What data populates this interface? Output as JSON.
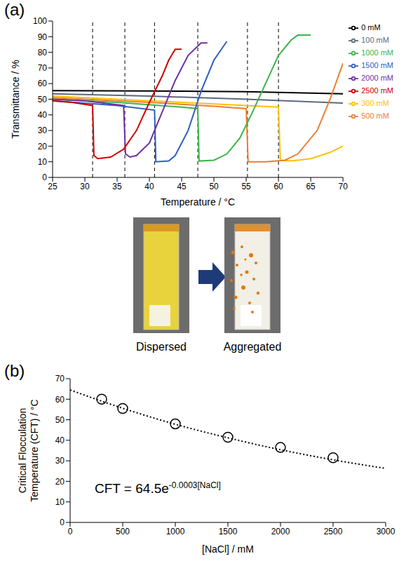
{
  "chart_data": [
    {
      "type": "line",
      "panel": "(a)",
      "x_label": "Temperature / °C",
      "y_label": "Transmittance / %",
      "xlim": [
        25,
        70
      ],
      "xticks": [
        25,
        30,
        35,
        40,
        45,
        50,
        55,
        60,
        65,
        70
      ],
      "ylim": [
        0,
        100
      ],
      "yticks": [
        0,
        10,
        20,
        30,
        40,
        50,
        60,
        70,
        80,
        90,
        100
      ],
      "legend": "right",
      "grid": false,
      "vlines": [
        31.2,
        36.2,
        40.8,
        47.5,
        55.2,
        60
      ],
      "series": [
        {
          "name": "0 mM",
          "color": "#000000",
          "x": [
            25,
            40,
            55,
            70
          ],
          "values": [
            55.5,
            55.3,
            54.8,
            53.5
          ]
        },
        {
          "name": "100 mM",
          "color": "#5a6a80",
          "x": [
            25,
            40,
            55,
            70
          ],
          "values": [
            53.5,
            52,
            50,
            47.5
          ]
        },
        {
          "name": "300 mM",
          "color": "#ffc000",
          "x": [
            25,
            40,
            55,
            60,
            60.3,
            62,
            65,
            68,
            70
          ],
          "values": [
            52,
            49,
            46,
            45,
            11,
            10.5,
            12,
            16,
            20
          ]
        },
        {
          "name": "500 mM",
          "color": "#ed7d31",
          "x": [
            25,
            40,
            50,
            55,
            55.3,
            58,
            61,
            63,
            66,
            68,
            70
          ],
          "values": [
            51,
            48,
            45.5,
            44,
            10,
            10,
            11,
            15,
            30,
            50,
            73
          ]
        },
        {
          "name": "1000 mM",
          "color": "#3cb44b",
          "x": [
            25,
            35,
            45,
            47.5,
            47.7,
            50,
            52,
            54,
            56,
            58,
            60,
            62,
            63,
            65
          ],
          "values": [
            50,
            48,
            45,
            44,
            10.5,
            11,
            15,
            25,
            42,
            60,
            78,
            88,
            91,
            91
          ]
        },
        {
          "name": "1500 mM",
          "color": "#2e5fc4",
          "x": [
            25,
            35,
            40.8,
            41,
            43,
            44,
            46,
            48,
            50,
            52
          ],
          "values": [
            49,
            46,
            43,
            10,
            10.5,
            14,
            30,
            55,
            75,
            87
          ]
        },
        {
          "name": "2000 mM",
          "color": "#7030a0",
          "x": [
            25,
            30,
            36,
            36.3,
            37,
            38,
            40,
            42,
            44,
            46,
            48,
            49
          ],
          "values": [
            50,
            49,
            46,
            15,
            13,
            14,
            22,
            42,
            62,
            78,
            86,
            86
          ]
        },
        {
          "name": "2500 mM",
          "color": "#d00000",
          "x": [
            25,
            28,
            31.2,
            31.4,
            32,
            34,
            36,
            38,
            40,
            42,
            43,
            44,
            45
          ],
          "values": [
            49,
            48,
            46,
            14,
            12,
            13,
            18,
            30,
            48,
            65,
            75,
            82,
            82
          ]
        }
      ]
    },
    {
      "type": "scatter",
      "panel": "(b)",
      "x_label": "[NaCl] / mM",
      "y_label": "Critical Flocculation Temperature (CFT) / °C",
      "xlim": [
        0,
        3000
      ],
      "xticks": [
        0,
        500,
        1000,
        1500,
        2000,
        2500,
        3000
      ],
      "ylim": [
        0,
        70
      ],
      "yticks": [
        0,
        10,
        20,
        30,
        40,
        50,
        60,
        70
      ],
      "grid": false,
      "marker": "circle",
      "color": "#000000",
      "x": [
        300,
        500,
        1000,
        1500,
        2000,
        2500
      ],
      "values": [
        60,
        55.5,
        48,
        41.5,
        36.5,
        31.5
      ],
      "fit": {
        "line_style": "dotted",
        "x": [
          0,
          500,
          1000,
          1500,
          2000,
          2500,
          3000
        ],
        "values": [
          64.5,
          55.6,
          47.8,
          41.2,
          35.4,
          30.5,
          26.3
        ]
      },
      "annotation": {
        "base": "CFT = 64.5e",
        "exponent": "-0.0003[NaCl]"
      }
    }
  ],
  "photo": {
    "labels": [
      "Dispersed",
      "Aggregated"
    ]
  }
}
